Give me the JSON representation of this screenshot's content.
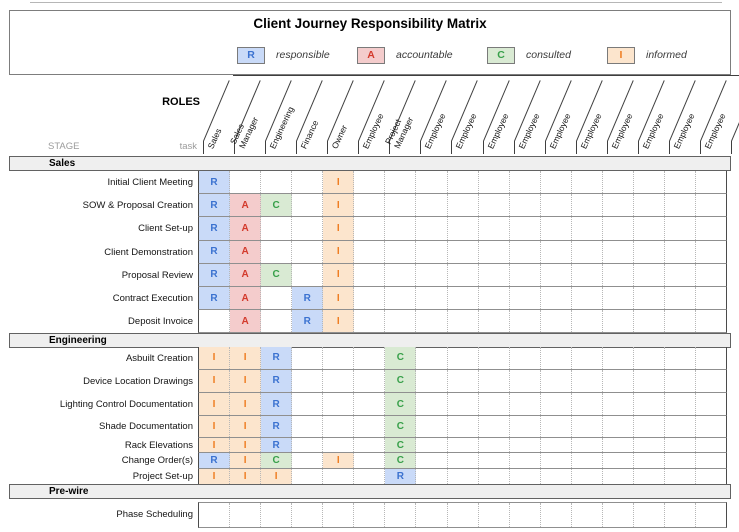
{
  "title": "Client Journey Responsibility Matrix",
  "legend": [
    {
      "key": "R",
      "label": "responsible"
    },
    {
      "key": "A",
      "label": "accountable"
    },
    {
      "key": "C",
      "label": "consulted"
    },
    {
      "key": "I",
      "label": "informed"
    }
  ],
  "corner": {
    "roles": "ROLES",
    "stage": "STAGE",
    "task": "task"
  },
  "colors": {
    "R": {
      "bg": "#c9daf8",
      "text": "#3b72d0"
    },
    "A": {
      "bg": "#f4cccc",
      "text": "#d33a2c"
    },
    "C": {
      "bg": "#d9ead3",
      "text": "#38a04a"
    },
    "I": {
      "bg": "#fce5cd",
      "text": "#ef7d22"
    }
  },
  "roles": [
    "Sales",
    "Sales Manager",
    "Engineering",
    "Finance",
    "Owner",
    "Employee",
    "Project Manager",
    "Employee",
    "Employee",
    "Employee",
    "Employee",
    "Employee",
    "Employee",
    "Employee",
    "Employee",
    "Employee",
    "Employee"
  ],
  "sections": [
    {
      "name": "Sales",
      "rows": [
        {
          "task": "Initial Client Meeting",
          "marks": [
            {
              "c": 0,
              "k": "R"
            },
            {
              "c": 4,
              "k": "I"
            }
          ]
        },
        {
          "task": "SOW & Proposal Creation",
          "marks": [
            {
              "c": 0,
              "k": "R"
            },
            {
              "c": 1,
              "k": "A"
            },
            {
              "c": 2,
              "k": "C"
            },
            {
              "c": 4,
              "k": "I"
            }
          ]
        },
        {
          "task": "Client Set-up",
          "marks": [
            {
              "c": 0,
              "k": "R"
            },
            {
              "c": 1,
              "k": "A"
            },
            {
              "c": 4,
              "k": "I"
            }
          ]
        },
        {
          "task": "Client Demonstration",
          "marks": [
            {
              "c": 0,
              "k": "R"
            },
            {
              "c": 1,
              "k": "A"
            },
            {
              "c": 4,
              "k": "I"
            }
          ]
        },
        {
          "task": "Proposal Review",
          "marks": [
            {
              "c": 0,
              "k": "R"
            },
            {
              "c": 1,
              "k": "A"
            },
            {
              "c": 2,
              "k": "C"
            },
            {
              "c": 4,
              "k": "I"
            }
          ]
        },
        {
          "task": "Contract Execution",
          "marks": [
            {
              "c": 0,
              "k": "R"
            },
            {
              "c": 1,
              "k": "A"
            },
            {
              "c": 3,
              "k": "R"
            },
            {
              "c": 4,
              "k": "I"
            }
          ]
        },
        {
          "task": "Deposit Invoice",
          "marks": [
            {
              "c": 1,
              "k": "A"
            },
            {
              "c": 3,
              "k": "R"
            },
            {
              "c": 4,
              "k": "I"
            }
          ]
        }
      ]
    },
    {
      "name": "Engineering",
      "rows": [
        {
          "task": "Asbuilt Creation",
          "marks": [
            {
              "c": 0,
              "k": "I"
            },
            {
              "c": 1,
              "k": "I"
            },
            {
              "c": 2,
              "k": "R"
            },
            {
              "c": 6,
              "k": "C"
            }
          ]
        },
        {
          "task": "Device Location Drawings",
          "marks": [
            {
              "c": 0,
              "k": "I"
            },
            {
              "c": 1,
              "k": "I"
            },
            {
              "c": 2,
              "k": "R"
            },
            {
              "c": 6,
              "k": "C"
            }
          ]
        },
        {
          "task": "Lighting Control Documentation",
          "marks": [
            {
              "c": 0,
              "k": "I"
            },
            {
              "c": 1,
              "k": "I"
            },
            {
              "c": 2,
              "k": "R"
            },
            {
              "c": 6,
              "k": "C"
            }
          ]
        },
        {
          "task": "Shade Documentation",
          "marks": [
            {
              "c": 0,
              "k": "I"
            },
            {
              "c": 1,
              "k": "I"
            },
            {
              "c": 2,
              "k": "R"
            },
            {
              "c": 6,
              "k": "C"
            }
          ]
        },
        {
          "task": "Rack Elevations",
          "marks": [
            {
              "c": 0,
              "k": "I"
            },
            {
              "c": 1,
              "k": "I"
            },
            {
              "c": 2,
              "k": "R"
            },
            {
              "c": 6,
              "k": "C"
            }
          ]
        },
        {
          "task": "Change Order(s)",
          "marks": [
            {
              "c": 0,
              "k": "R"
            },
            {
              "c": 1,
              "k": "I"
            },
            {
              "c": 2,
              "k": "C"
            },
            {
              "c": 4,
              "k": "I"
            },
            {
              "c": 6,
              "k": "C"
            }
          ]
        },
        {
          "task": "Project Set-up",
          "marks": [
            {
              "c": 0,
              "k": "I"
            },
            {
              "c": 1,
              "k": "I"
            },
            {
              "c": 2,
              "k": "I"
            },
            {
              "c": 6,
              "k": "R"
            }
          ]
        }
      ]
    },
    {
      "name": "Pre-wire",
      "rows": [
        {
          "task": "Phase Scheduling",
          "marks": []
        }
      ]
    }
  ]
}
